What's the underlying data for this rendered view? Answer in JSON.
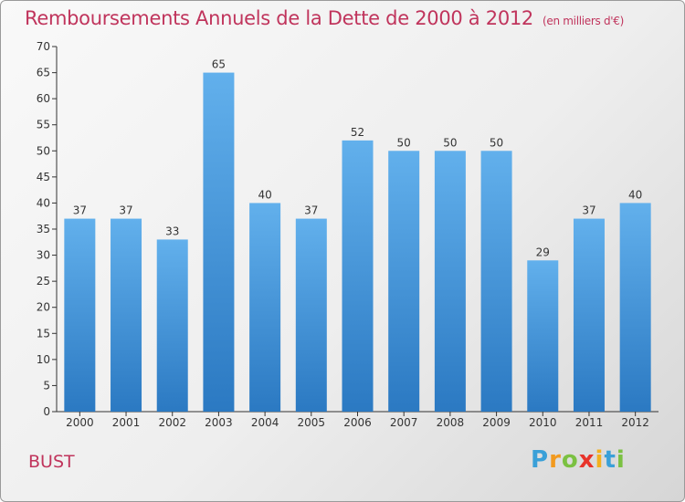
{
  "title": "Remboursements Annuels de la Dette de 2000 à 2012",
  "subtitle": "(en milliers d'€)",
  "commune": "BUST",
  "logo": {
    "letters": [
      "P",
      "r",
      "o",
      "x",
      "i",
      "t",
      "i"
    ],
    "colors": [
      "#3aa0d8",
      "#f29a1f",
      "#7bc142",
      "#e8332a",
      "#f2b01f",
      "#3aa0d8",
      "#7bc142"
    ]
  },
  "colors": {
    "bar": "#4a9fe0",
    "bar_light": "#6ab4ee",
    "bar_dark": "#2c7cc6",
    "title": "#c0345c"
  },
  "chart_data": {
    "type": "bar",
    "categories": [
      "2000",
      "2001",
      "2002",
      "2003",
      "2004",
      "2005",
      "2006",
      "2007",
      "2008",
      "2009",
      "2010",
      "2011",
      "2012"
    ],
    "values": [
      37,
      37,
      33,
      65,
      40,
      37,
      52,
      50,
      50,
      50,
      29,
      37,
      40
    ],
    "title": "Remboursements Annuels de la Dette de 2000 à 2012",
    "ylim": [
      0,
      70
    ],
    "yticks": [
      0,
      5,
      10,
      15,
      20,
      25,
      30,
      35,
      40,
      45,
      50,
      55,
      60,
      65,
      70
    ],
    "grid": false
  }
}
